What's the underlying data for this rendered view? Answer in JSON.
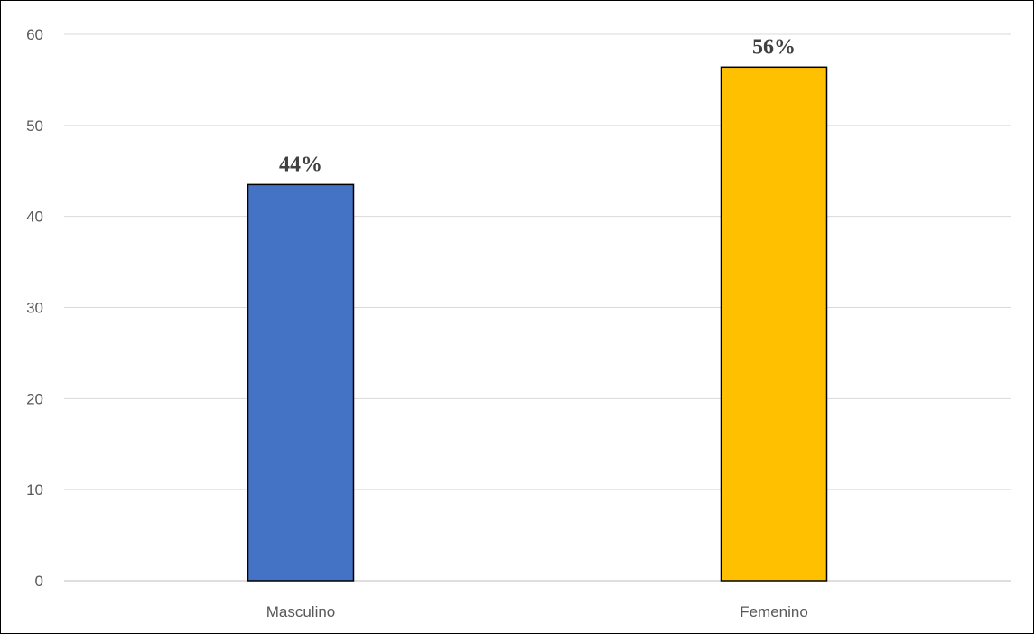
{
  "chart_data": {
    "type": "bar",
    "categories": [
      "Masculino",
      "Femenino"
    ],
    "values": [
      43.5,
      56.4
    ],
    "data_labels": [
      "44%",
      "56%"
    ],
    "colors": [
      "#4472c4",
      "#ffc000"
    ],
    "title": "",
    "xlabel": "",
    "ylabel": "",
    "ylim": [
      0,
      60
    ],
    "yticks": [
      0,
      10,
      20,
      30,
      40,
      50,
      60
    ],
    "grid": true,
    "legend": "none"
  }
}
